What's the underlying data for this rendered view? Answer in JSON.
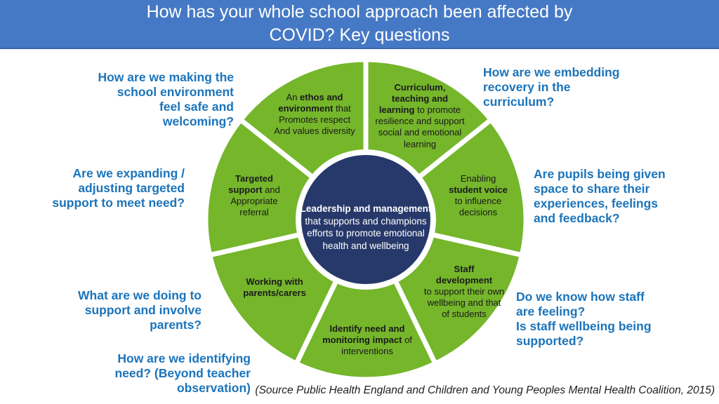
{
  "colors": {
    "header_bg": "#4679c5",
    "header_border": "#3a67ab",
    "header_text": "#ffffff",
    "question_blue": "#1b74bb",
    "wheel_green": "#75b62b",
    "center_navy": "#27396a",
    "segment_text": "#1a1a1a",
    "gap_white": "#ffffff",
    "source_text": "#1f1f1f"
  },
  "header": {
    "title": "How has your whole school approach been affected by\nCOVID? Key questions"
  },
  "questions": {
    "safe_environment": {
      "text": "How are we making the\nschool environment\nfeel safe and\nwelcoming?"
    },
    "expanding_support": {
      "text": "Are we expanding /\nadjusting targeted\nsupport to meet need?"
    },
    "support_parents": {
      "text": "What are we doing to\nsupport and involve\nparents?"
    },
    "identifying_need": {
      "text": "How are we identifying\nneed? (Beyond teacher\nobservation)"
    },
    "embedding_recovery": {
      "text": "How are we embedding\nrecovery in the\ncurriculum?"
    },
    "pupils_space": {
      "text": "Are pupils being given\nspace to share their\nexperiences, feelings\nand feedback?"
    },
    "staff_feeling": {
      "text": "Do we know how staff\nare feeling?\nIs staff wellbeing being\nsupported?"
    }
  },
  "wheel": {
    "center_label": {
      "runs": [
        {
          "text": "Leadership and management",
          "bold": true
        },
        {
          "text": "\nthat supports and champions\nefforts to promote emotional\nhealth and wellbeing",
          "bold": false
        }
      ]
    },
    "segments": {
      "ethos": {
        "runs": [
          {
            "text": "An ",
            "bold": false
          },
          {
            "text": "ethos and\nenvironment",
            "bold": true
          },
          {
            "text": " that\nPromotes respect\nAnd values diversity",
            "bold": false
          }
        ]
      },
      "curriculum": {
        "runs": [
          {
            "text": "Curriculum,\nteaching and\nlearning",
            "bold": true
          },
          {
            "text": " to promote\nresilience and support\nsocial and emotional\nlearning",
            "bold": false
          }
        ]
      },
      "student_voice": {
        "runs": [
          {
            "text": "Enabling\n",
            "bold": false
          },
          {
            "text": "student voice",
            "bold": true
          },
          {
            "text": "\nto influence\ndecisions",
            "bold": false
          }
        ]
      },
      "staff_development": {
        "runs": [
          {
            "text": "Staff\ndevelopment",
            "bold": true
          },
          {
            "text": "\nto support their own\nwellbeing and that\nof students",
            "bold": false
          }
        ]
      },
      "identify_need": {
        "runs": [
          {
            "text": "Identify need and\nmonitoring impact",
            "bold": true
          },
          {
            "text": " of\ninterventions",
            "bold": false
          }
        ]
      },
      "working_parents": {
        "runs": [
          {
            "text": "Working with\nparents/carers",
            "bold": true
          }
        ]
      },
      "targeted_support": {
        "runs": [
          {
            "text": "Targeted\nsupport",
            "bold": true
          },
          {
            "text": " and\nAppropriate\nreferral",
            "bold": false
          }
        ]
      }
    }
  },
  "source": {
    "text": "(Source Public Health England and Children and Young Peoples Mental Health Coalition, 2015)"
  }
}
